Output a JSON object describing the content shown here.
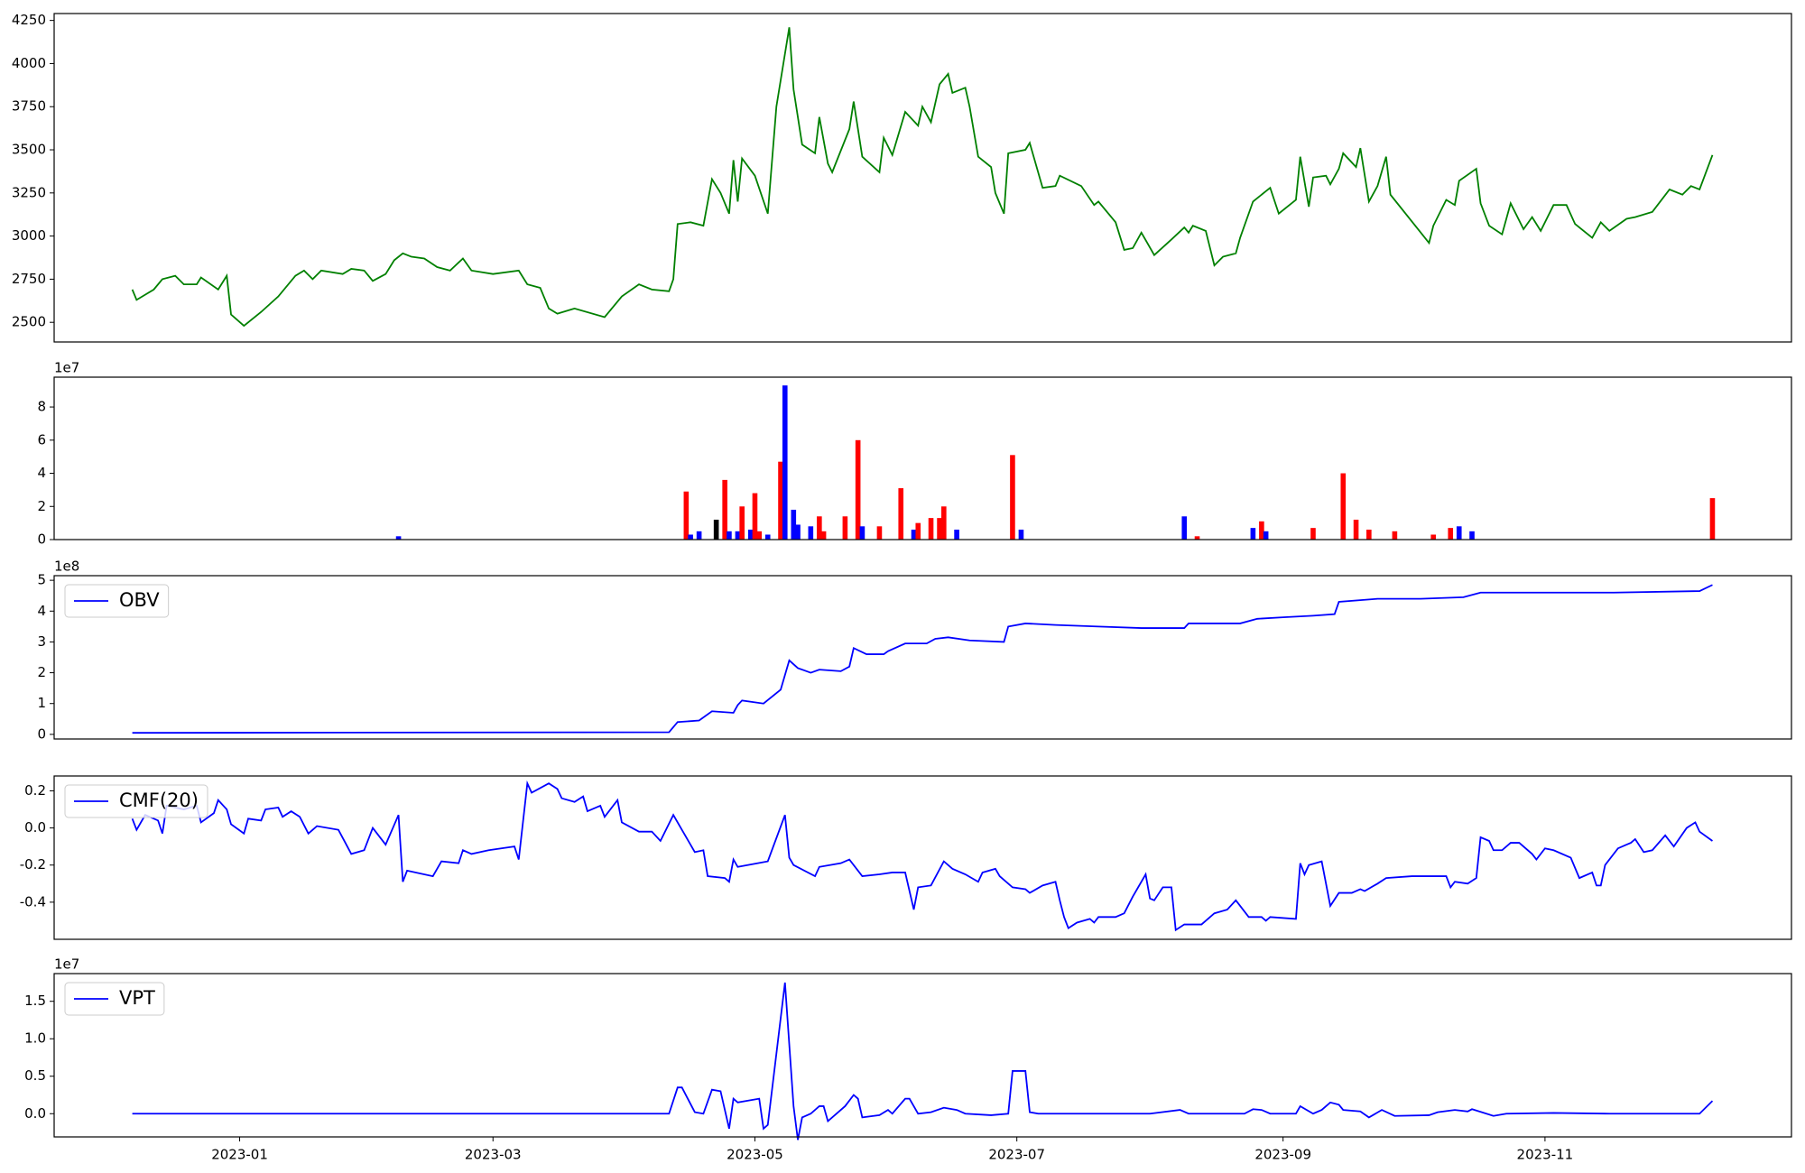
{
  "chart_data": [
    {
      "type": "line",
      "color": "green",
      "x": [
        -25,
        -24,
        -22,
        -20,
        -18,
        -15,
        -13,
        -10,
        -9,
        -5,
        -3,
        -2,
        1,
        5,
        9,
        13,
        15,
        17,
        19,
        24,
        26,
        29,
        31,
        34,
        36,
        38,
        40,
        43,
        46,
        49,
        52,
        54,
        59,
        65,
        67,
        70,
        72,
        74,
        78,
        85,
        89,
        93,
        96,
        100,
        101,
        102,
        105,
        108,
        110,
        112,
        114,
        115,
        116,
        117,
        120,
        123,
        125,
        128,
        129,
        131,
        134,
        135,
        137,
        138,
        142,
        143,
        145,
        149,
        150,
        152,
        155,
        158,
        159,
        161,
        163,
        165,
        166,
        169,
        170,
        172,
        175,
        176,
        178,
        179,
        183,
        184,
        187,
        190,
        191,
        196,
        199,
        200,
        204,
        206,
        208,
        210,
        213,
        217,
        220,
        221,
        222,
        225,
        227,
        229,
        232,
        233,
        236,
        240,
        242,
        246,
        247,
        249,
        250,
        253,
        254,
        256,
        257,
        260,
        261,
        263,
        265,
        267,
        268,
        277,
        278,
        281,
        283,
        284,
        288,
        289,
        291,
        294,
        296,
        299,
        301,
        303,
        306,
        309,
        311,
        315,
        317,
        319,
        323,
        325,
        329,
        333,
        336,
        338,
        340,
        343
      ],
      "values": [
        2690,
        2630,
        2660,
        2690,
        2750,
        2770,
        2720,
        2720,
        2760,
        2690,
        2770,
        2545,
        2480,
        2560,
        2650,
        2770,
        2800,
        2750,
        2800,
        2780,
        2810,
        2800,
        2740,
        2780,
        2860,
        2900,
        2880,
        2870,
        2820,
        2800,
        2870,
        2800,
        2780,
        2800,
        2720,
        2700,
        2580,
        2550,
        2580,
        2530,
        2650,
        2720,
        2690,
        2680,
        2750,
        3070,
        3080,
        3060,
        3330,
        3250,
        3130,
        3440,
        3200,
        3450,
        3350,
        3130,
        3750,
        4210,
        3850,
        3530,
        3480,
        3690,
        3420,
        3370,
        3620,
        3780,
        3460,
        3370,
        3570,
        3470,
        3720,
        3640,
        3750,
        3660,
        3880,
        3940,
        3830,
        3860,
        3750,
        3460,
        3400,
        3250,
        3130,
        3480,
        3500,
        3540,
        3280,
        3290,
        3350,
        3290,
        3180,
        3200,
        3080,
        2920,
        2930,
        3020,
        2890,
        2980,
        3050,
        3020,
        3060,
        3030,
        2830,
        2880,
        2900,
        2990,
        3200,
        3280,
        3130,
        3210,
        3460,
        3170,
        3340,
        3350,
        3300,
        3390,
        3480,
        3400,
        3510,
        3200,
        3290,
        3460,
        3240,
        2960,
        3060,
        3210,
        3180,
        3320,
        3390,
        3190,
        3060,
        3010,
        3190,
        3040,
        3110,
        3030,
        3180,
        3180,
        3070,
        2990,
        3080,
        3030,
        3100,
        3110,
        3140,
        3270,
        3240,
        3290,
        3270,
        3470
      ],
      "xlim": [
        -43.2,
        361.4
      ],
      "ylim": [
        2386,
        4290
      ],
      "yticks": [
        2500,
        2750,
        3000,
        3250,
        3500,
        3750,
        4000,
        4250
      ]
    },
    {
      "type": "bar",
      "offset_text": "1e7",
      "x": [
        37,
        104,
        105,
        107,
        111,
        113,
        114,
        116,
        117,
        119,
        120,
        121,
        123,
        126,
        127,
        129,
        130,
        133,
        135,
        136,
        141,
        144,
        145,
        149,
        154,
        157,
        158,
        161,
        163,
        164,
        167,
        180,
        182,
        220,
        223,
        236,
        238,
        239,
        250,
        257,
        260,
        263,
        269,
        278,
        282,
        284,
        287,
        343
      ],
      "values": [
        0.2,
        2.9,
        0.3,
        0.5,
        1.2,
        3.6,
        0.5,
        0.5,
        2.0,
        0.6,
        2.8,
        0.5,
        0.3,
        4.7,
        9.3,
        1.8,
        0.9,
        0.8,
        1.4,
        0.5,
        1.4,
        6.0,
        0.8,
        0.8,
        3.1,
        0.6,
        1.0,
        1.3,
        1.3,
        2.0,
        0.6,
        5.1,
        0.6,
        1.4,
        0.2,
        0.7,
        1.1,
        0.5,
        0.7,
        4.0,
        1.2,
        0.6,
        0.5,
        0.3,
        0.7,
        0.8,
        0.5,
        2.5
      ],
      "colors": [
        "blue",
        "red",
        "blue",
        "blue",
        "black",
        "red",
        "blue",
        "blue",
        "red",
        "blue",
        "red",
        "red",
        "blue",
        "red",
        "blue",
        "blue",
        "blue",
        "blue",
        "red",
        "red",
        "red",
        "red",
        "blue",
        "red",
        "red",
        "blue",
        "red",
        "red",
        "red",
        "red",
        "blue",
        "red",
        "blue",
        "blue",
        "red",
        "blue",
        "red",
        "blue",
        "red",
        "red",
        "red",
        "red",
        "red",
        "red",
        "red",
        "blue",
        "blue",
        "red"
      ],
      "xlim": [
        -43.2,
        361.4
      ],
      "ylim": [
        0,
        9.8
      ],
      "yticks": [
        0,
        2,
        4,
        6,
        8
      ]
    },
    {
      "type": "line",
      "offset_text": "1e8",
      "legend": "upper left",
      "x": [
        -25,
        100,
        102,
        107,
        110,
        115,
        116,
        117,
        122,
        126,
        128,
        130,
        133,
        135,
        140,
        142,
        143,
        146,
        150,
        151,
        155,
        160,
        162,
        165,
        170,
        178,
        179,
        183,
        190,
        200,
        210,
        220,
        221,
        233,
        237,
        243,
        250,
        255,
        256,
        265,
        275,
        285,
        289,
        300,
        320,
        340,
        343
      ],
      "series": [
        {
          "name": "OBV",
          "color": "blue",
          "values": [
            0.05,
            0.07,
            0.4,
            0.45,
            0.75,
            0.7,
            0.95,
            1.1,
            1.0,
            1.45,
            2.4,
            2.15,
            2.0,
            2.1,
            2.05,
            2.2,
            2.8,
            2.6,
            2.6,
            2.7,
            2.95,
            2.95,
            3.1,
            3.15,
            3.05,
            3.0,
            3.5,
            3.6,
            3.55,
            3.5,
            3.45,
            3.45,
            3.6,
            3.6,
            3.75,
            3.8,
            3.85,
            3.9,
            4.3,
            4.4,
            4.4,
            4.45,
            4.6,
            4.6,
            4.6,
            4.65,
            4.85
          ]
        }
      ],
      "xlim": [
        -43.2,
        361.4
      ],
      "ylim": [
        -0.15,
        5.15
      ],
      "yticks": [
        0,
        1,
        2,
        3,
        4,
        5
      ]
    },
    {
      "type": "line",
      "legend": "upper left",
      "x": [
        -25,
        -24,
        -22,
        -19,
        -18,
        -17,
        -13,
        -10,
        -9,
        -6,
        -5,
        -3,
        -2,
        1,
        2,
        5,
        6,
        9,
        10,
        12,
        14,
        16,
        18,
        23,
        26,
        29,
        31,
        34,
        37,
        38,
        39,
        45,
        47,
        51,
        52,
        54,
        58,
        64,
        65,
        67,
        68,
        72,
        74,
        75,
        78,
        80,
        81,
        84,
        85,
        88,
        89,
        93,
        96,
        98,
        101,
        103,
        106,
        108,
        109,
        113,
        114,
        115,
        116,
        123,
        127,
        128,
        129,
        134,
        135,
        140,
        142,
        145,
        149,
        152,
        155,
        157,
        158,
        161,
        164,
        166,
        169,
        172,
        173,
        176,
        177,
        180,
        183,
        184,
        187,
        190,
        191,
        192,
        193,
        195,
        198,
        199,
        200,
        204,
        206,
        208,
        211,
        212,
        213,
        215,
        217,
        218,
        220,
        224,
        227,
        230,
        232,
        233,
        235,
        238,
        239,
        240,
        246,
        247,
        248,
        249,
        252,
        254,
        256,
        259,
        261,
        262,
        265,
        267,
        273,
        281,
        282,
        283,
        286,
        288,
        289,
        291,
        292,
        294,
        296,
        298,
        301,
        302,
        304,
        306,
        310,
        312,
        315,
        316,
        317,
        318,
        321,
        323,
        324,
        325,
        327,
        329,
        332,
        334,
        337,
        339,
        340,
        343
      ],
      "series": [
        {
          "name": "CMF(20)",
          "color": "blue",
          "values": [
            0.05,
            -0.01,
            0.07,
            0.04,
            -0.03,
            0.12,
            0.1,
            0.12,
            0.03,
            0.08,
            0.15,
            0.1,
            0.02,
            -0.03,
            0.05,
            0.04,
            0.1,
            0.11,
            0.06,
            0.09,
            0.06,
            -0.03,
            0.01,
            -0.01,
            -0.14,
            -0.12,
            0.0,
            -0.09,
            0.07,
            -0.29,
            -0.23,
            -0.26,
            -0.18,
            -0.19,
            -0.12,
            -0.14,
            -0.12,
            -0.1,
            -0.17,
            0.24,
            0.19,
            0.24,
            0.21,
            0.16,
            0.14,
            0.17,
            0.09,
            0.12,
            0.06,
            0.15,
            0.03,
            -0.02,
            -0.02,
            -0.07,
            0.07,
            -0.01,
            -0.13,
            -0.12,
            -0.26,
            -0.27,
            -0.29,
            -0.17,
            -0.21,
            -0.18,
            0.07,
            -0.16,
            -0.2,
            -0.26,
            -0.21,
            -0.19,
            -0.17,
            -0.26,
            -0.25,
            -0.24,
            -0.24,
            -0.44,
            -0.32,
            -0.31,
            -0.18,
            -0.22,
            -0.25,
            -0.29,
            -0.24,
            -0.22,
            -0.26,
            -0.32,
            -0.33,
            -0.35,
            -0.31,
            -0.29,
            -0.39,
            -0.48,
            -0.54,
            -0.51,
            -0.49,
            -0.51,
            -0.48,
            -0.48,
            -0.46,
            -0.37,
            -0.25,
            -0.38,
            -0.39,
            -0.32,
            -0.32,
            -0.55,
            -0.52,
            -0.52,
            -0.46,
            -0.44,
            -0.39,
            -0.42,
            -0.48,
            -0.48,
            -0.5,
            -0.48,
            -0.49,
            -0.19,
            -0.25,
            -0.2,
            -0.18,
            -0.42,
            -0.35,
            -0.35,
            -0.33,
            -0.34,
            -0.3,
            -0.27,
            -0.26,
            -0.26,
            -0.32,
            -0.29,
            -0.3,
            -0.27,
            -0.05,
            -0.07,
            -0.12,
            -0.12,
            -0.08,
            -0.08,
            -0.14,
            -0.17,
            -0.11,
            -0.12,
            -0.16,
            -0.27,
            -0.24,
            -0.31,
            -0.31,
            -0.2,
            -0.11,
            -0.09,
            -0.08,
            -0.06,
            -0.13,
            -0.12,
            -0.04,
            -0.1,
            0.0,
            0.03,
            -0.02,
            -0.07
          ]
        }
      ],
      "xlim": [
        -43.2,
        361.4
      ],
      "ylim": [
        -0.6,
        0.28
      ],
      "yticks": [
        -0.4,
        -0.2,
        {
          "value": 0,
          "label": "0.0"
        },
        0.2
      ]
    },
    {
      "type": "line",
      "offset_text": "1e7",
      "legend": "upper left",
      "x": [
        -25,
        100,
        102,
        103,
        106,
        108,
        110,
        112,
        114,
        115,
        116,
        121,
        122,
        123,
        127,
        129,
        130,
        131,
        133,
        135,
        136,
        137,
        141,
        143,
        144,
        145,
        149,
        151,
        152,
        155,
        156,
        158,
        161,
        164,
        167,
        169,
        175,
        179,
        180,
        183,
        184,
        186,
        199,
        212,
        219,
        221,
        234,
        236,
        238,
        240,
        246,
        247,
        250,
        252,
        254,
        256,
        257,
        261,
        263,
        266,
        269,
        277,
        279,
        283,
        286,
        287,
        292,
        295,
        306,
        319,
        340,
        343
      ],
      "series": [
        {
          "name": "VPT",
          "color": "blue",
          "values": [
            0,
            0,
            0.35,
            0.35,
            0.02,
            0,
            0.32,
            0.3,
            -0.2,
            0.2,
            0.15,
            0.2,
            -0.2,
            -0.15,
            1.75,
            0.1,
            -0.35,
            -0.05,
            0,
            0.1,
            0.1,
            -0.1,
            0.1,
            0.25,
            0.2,
            -0.05,
            -0.02,
            0.05,
            0,
            0.2,
            0.2,
            0,
            0.02,
            0.08,
            0.05,
            0,
            -0.02,
            0,
            0.57,
            0.57,
            0.02,
            0,
            0,
            0,
            0.05,
            0,
            0,
            0.06,
            0.05,
            0,
            0,
            0.1,
            0,
            0.05,
            0.15,
            0.12,
            0.05,
            0.03,
            -0.05,
            0.05,
            -0.03,
            -0.02,
            0.02,
            0.05,
            0.03,
            0.06,
            -0.03,
            0,
            0.01,
            0,
            0,
            0.17
          ]
        }
      ],
      "xlim": [
        -43.2,
        361.4
      ],
      "ylim": [
        -0.31,
        1.87
      ],
      "yticks": [
        {
          "value": 0,
          "label": "0.0"
        },
        0.5,
        {
          "value": 1,
          "label": "1.0"
        },
        1.5
      ],
      "xticks": [
        {
          "value": 0,
          "label": "2023-01"
        },
        {
          "value": 59,
          "label": "2023-03"
        },
        {
          "value": 120,
          "label": "2023-05"
        },
        {
          "value": 181,
          "label": "2023-07"
        },
        {
          "value": 243,
          "label": "2023-09"
        },
        {
          "value": 304,
          "label": "2023-11"
        }
      ]
    }
  ]
}
